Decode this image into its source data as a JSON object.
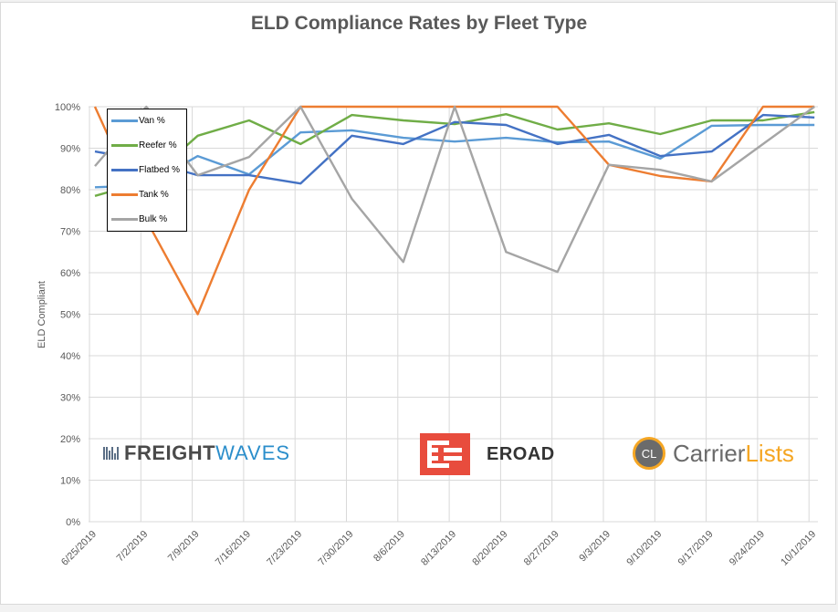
{
  "chart_data": {
    "type": "line",
    "title": "ELD Compliance Rates by Fleet Type",
    "xlabel": "",
    "ylabel": "ELD Compliant",
    "ylim": [
      0,
      100
    ],
    "yticks": [
      "0%",
      "10%",
      "20%",
      "30%",
      "40%",
      "50%",
      "60%",
      "70%",
      "80%",
      "90%",
      "100%"
    ],
    "grid": true,
    "legend_position": "top-left",
    "categories": [
      "6/25/2019",
      "7/2/2019",
      "7/9/2019",
      "7/16/2019",
      "7/23/2019",
      "7/30/2019",
      "8/6/2019",
      "8/13/2019",
      "8/20/2019",
      "8/27/2019",
      "9/3/2019",
      "9/10/2019",
      "9/17/2019",
      "9/24/2019",
      "10/1/2019"
    ],
    "series": [
      {
        "name": "Van %",
        "color": "#5b9bd5",
        "values": [
          80.6,
          81.0,
          88.1,
          83.7,
          93.8,
          94.3,
          92.5,
          91.6,
          92.5,
          91.4,
          91.6,
          87.5,
          95.4,
          95.6,
          95.6
        ]
      },
      {
        "name": "Reefer %",
        "color": "#70ad47",
        "values": [
          78.5,
          82.0,
          93.0,
          96.7,
          91.0,
          98.0,
          96.7,
          95.8,
          98.2,
          94.5,
          96.0,
          93.4,
          96.7,
          96.7,
          98.7
        ]
      },
      {
        "name": "Flatbed %",
        "color": "#4472c4",
        "values": [
          89.2,
          87.0,
          83.5,
          83.5,
          81.5,
          93.0,
          91.0,
          96.3,
          95.6,
          91.0,
          93.2,
          88.1,
          89.2,
          98.0,
          97.4
        ]
      },
      {
        "name": "Tank %",
        "color": "#ed7d31",
        "values": [
          100,
          72.7,
          50.0,
          80.0,
          100,
          100,
          100,
          100,
          100,
          100,
          86.0,
          83.3,
          82.0,
          100,
          100
        ]
      },
      {
        "name": "Bulk %",
        "color": "#a5a5a5",
        "values": [
          85.7,
          100,
          83.5,
          87.9,
          100,
          77.8,
          62.6,
          100,
          65.0,
          60.2,
          86.0,
          84.8,
          82.0,
          91.0,
          100
        ]
      }
    ]
  },
  "logos": {
    "freightwaves": {
      "part1": "FREIGHT",
      "part2": "WAVES"
    },
    "eroad": {
      "text": "EROAD"
    },
    "carrierlists": {
      "badge": "CL",
      "part1": "Carrier",
      "part2": "Lists"
    }
  }
}
